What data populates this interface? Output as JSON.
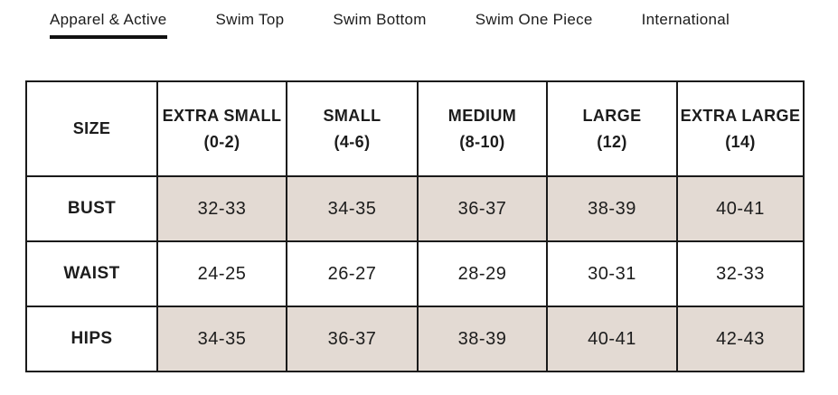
{
  "tabs": [
    {
      "label": "Apparel & Active",
      "active": true
    },
    {
      "label": "Swim Top",
      "active": false
    },
    {
      "label": "Swim Bottom",
      "active": false
    },
    {
      "label": "Swim One Piece",
      "active": false
    },
    {
      "label": "International",
      "active": false
    }
  ],
  "size_chart": {
    "corner_label": "SIZE",
    "columns": [
      {
        "name": "EXTRA SMALL",
        "range": "(0-2)"
      },
      {
        "name": "SMALL",
        "range": "(4-6)"
      },
      {
        "name": "MEDIUM",
        "range": "(8-10)"
      },
      {
        "name": "LARGE",
        "range": "(12)"
      },
      {
        "name": "EXTRA LARGE",
        "range": "(14)"
      }
    ],
    "rows": [
      {
        "label": "BUST",
        "shaded": true,
        "values": [
          "32-33",
          "34-35",
          "36-37",
          "38-39",
          "40-41"
        ]
      },
      {
        "label": "WAIST",
        "shaded": false,
        "values": [
          "24-25",
          "26-27",
          "28-29",
          "30-31",
          "32-33"
        ]
      },
      {
        "label": "HIPS",
        "shaded": true,
        "values": [
          "34-35",
          "36-37",
          "38-39",
          "40-41",
          "42-43"
        ]
      }
    ]
  },
  "colors": {
    "shaded_cell": "#e3dad3",
    "border": "#1a1a1a",
    "text": "#1c1c1c",
    "background": "#ffffff",
    "active_tab_underline": "#111111"
  }
}
